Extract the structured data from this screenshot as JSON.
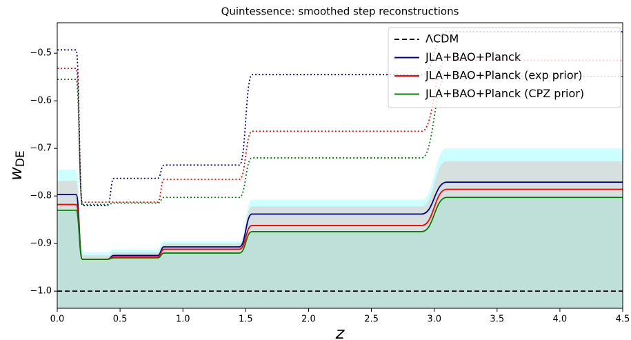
{
  "chart_data": {
    "type": "line",
    "title": "Quintessence: smoothed step reconstructions",
    "xlabel": "z",
    "ylabel": "w",
    "ylabel_sub": "DE",
    "x": [
      0,
      0.15,
      0.2,
      0.4,
      0.45,
      0.8,
      0.85,
      1.45,
      1.55,
      2.9,
      3.1,
      4.5
    ],
    "series": [
      {
        "name": "ΛCDM",
        "color": "#000000",
        "style": "dashed",
        "values": [
          -1,
          -1,
          -1,
          -1,
          -1,
          -1,
          -1,
          -1,
          -1,
          -1,
          -1,
          -1
        ]
      },
      {
        "name": "JLA+BAO+Planck",
        "color": "#000080",
        "style": "solid",
        "values": [
          -0.797,
          -0.797,
          -0.933,
          -0.933,
          -0.925,
          -0.925,
          -0.907,
          -0.907,
          -0.838,
          -0.838,
          -0.771,
          -0.771
        ]
      },
      {
        "name": "JLA+BAO+Planck (exp prior)",
        "color": "#ff0000",
        "style": "solid",
        "values": [
          -0.818,
          -0.818,
          -0.933,
          -0.933,
          -0.928,
          -0.928,
          -0.912,
          -0.912,
          -0.862,
          -0.862,
          -0.786,
          -0.786
        ]
      },
      {
        "name": "JLA+BAO+Planck (CPZ prior)",
        "color": "#008000",
        "style": "solid",
        "fill": "#bfe0d8",
        "values": [
          -0.83,
          -0.83,
          -0.933,
          -0.933,
          -0.93,
          -0.93,
          -0.92,
          -0.92,
          -0.875,
          -0.875,
          -0.803,
          -0.803
        ]
      }
    ],
    "bounds": [
      {
        "color": "#000080",
        "values": [
          -0.493,
          -0.493,
          -0.82,
          -0.82,
          -0.763,
          -0.763,
          -0.735,
          -0.735,
          -0.545,
          -0.545,
          -0.455,
          -0.455
        ]
      },
      {
        "color": "#ff0000",
        "values": [
          -0.532,
          -0.532,
          -0.813,
          -0.813,
          -0.813,
          -0.813,
          -0.765,
          -0.765,
          -0.664,
          -0.664,
          -0.515,
          -0.515
        ]
      },
      {
        "color": "#008000",
        "values": [
          -0.555,
          -0.555,
          -0.818,
          -0.818,
          -0.815,
          -0.815,
          -0.803,
          -0.803,
          -0.72,
          -0.72,
          -0.549,
          -0.549
        ]
      }
    ],
    "bands": [
      {
        "color": "#ccffff",
        "values": [
          -0.745,
          -0.745,
          -0.918,
          -0.918,
          -0.912,
          -0.912,
          -0.895,
          -0.895,
          -0.808,
          -0.808,
          -0.7,
          -0.7
        ]
      },
      {
        "color": "#d5e0df",
        "values": [
          -0.768,
          -0.768,
          -0.925,
          -0.925,
          -0.918,
          -0.918,
          -0.9,
          -0.9,
          -0.822,
          -0.822,
          -0.727,
          -0.727
        ]
      }
    ],
    "xlim": [
      0,
      4.5
    ],
    "ylim": [
      -1.036,
      -0.436
    ],
    "xticks": [
      {
        "value": 0,
        "label": "0.0"
      },
      0.5,
      {
        "value": 1,
        "label": "1.0"
      },
      1.5,
      {
        "value": 2,
        "label": "2.0"
      },
      2.5,
      {
        "value": 3,
        "label": "3.0"
      },
      3.5,
      {
        "value": 4,
        "label": "4.0"
      },
      4.5
    ],
    "yticks": [
      {
        "value": -1,
        "label": "−1.0"
      },
      {
        "value": -0.9,
        "label": "−0.9"
      },
      {
        "value": -0.8,
        "label": "−0.8"
      },
      {
        "value": -0.7,
        "label": "−0.7"
      },
      {
        "value": -0.6,
        "label": "−0.6"
      },
      {
        "value": -0.5,
        "label": "−0.5"
      }
    ],
    "legend": "upper right"
  }
}
